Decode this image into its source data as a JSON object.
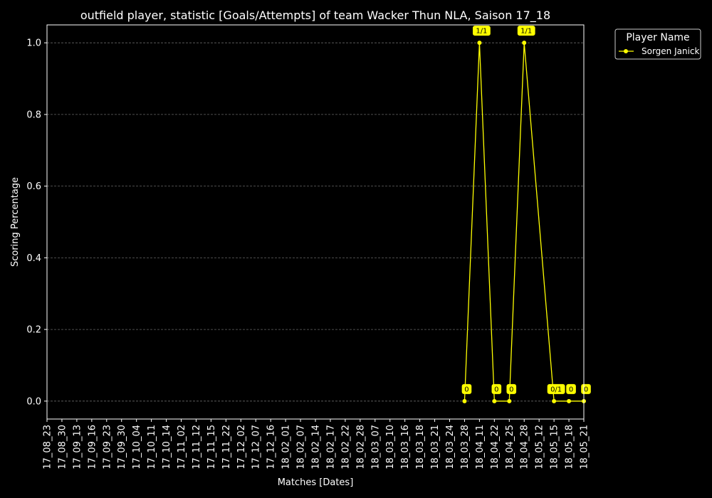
{
  "chart_data": {
    "type": "line",
    "title": "outfield player, statistic [Goals/Attempts] of team Wacker Thun NLA, Saison 17_18",
    "xlabel": "Matches [Dates]",
    "ylabel": "Scoring Percentage",
    "ylim": [
      -0.05,
      1.05
    ],
    "yticks": [
      "0.0",
      "0.2",
      "0.4",
      "0.6",
      "0.8",
      "1.0"
    ],
    "grid": "horizontal dashed",
    "categories": [
      "17_08_23",
      "17_08_30",
      "17_09_13",
      "17_09_16",
      "17_09_23",
      "17_09_30",
      "17_10_04",
      "17_10_11",
      "17_10_14",
      "17_11_02",
      "17_11_12",
      "17_11_15",
      "17_11_22",
      "17_12_02",
      "17_12_07",
      "17_12_16",
      "18_02_01",
      "18_02_07",
      "18_02_14",
      "18_02_17",
      "18_02_22",
      "18_02_28",
      "18_03_07",
      "18_03_10",
      "18_03_16",
      "18_03_18",
      "18_03_21",
      "18_03_24",
      "18_03_28",
      "18_04_11",
      "18_04_22",
      "18_04_25",
      "18_04_28",
      "18_05_12",
      "18_05_15",
      "18_05_18",
      "18_05_21"
    ],
    "legend": {
      "title": "Player Name",
      "placement": "outside-top-right"
    },
    "series": [
      {
        "name": "Sorgen Janick",
        "color": "#ffff00",
        "points": [
          {
            "x": "18_03_28",
            "y": 0.0,
            "label": "0"
          },
          {
            "x": "18_04_11",
            "y": 1.0,
            "label": "1/1"
          },
          {
            "x": "18_04_22",
            "y": 0.0,
            "label": "0"
          },
          {
            "x": "18_04_25",
            "y": 0.0,
            "label": "0"
          },
          {
            "x": "18_04_28",
            "y": 1.0,
            "label": "1/1"
          },
          {
            "x": "18_05_15",
            "y": 0.0,
            "label": "0/1"
          },
          {
            "x": "18_05_18",
            "y": 0.0,
            "label": "0"
          },
          {
            "x": "18_05_21",
            "y": 0.0,
            "label": "0"
          }
        ]
      }
    ]
  }
}
